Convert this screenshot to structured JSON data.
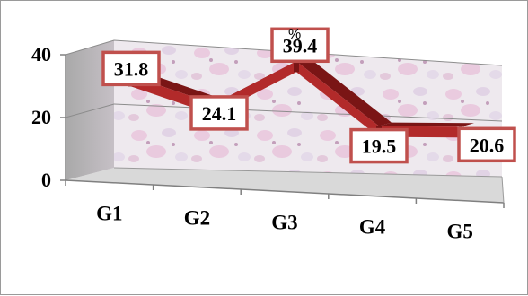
{
  "chart_data": {
    "type": "line",
    "title": "",
    "unit_label": "%",
    "categories": [
      "G1",
      "G2",
      "G3",
      "G4",
      "G5"
    ],
    "series": [
      {
        "values": [
          31.8,
          24.1,
          39.4,
          19.5,
          20.6
        ],
        "labels": [
          "31.8",
          "24.1",
          "39.4",
          "19.5",
          "20.6"
        ]
      }
    ],
    "y_ticks": [
      "0",
      "20",
      "40"
    ],
    "ylim": [
      0,
      40
    ],
    "grid": true,
    "legend": "none",
    "style": "3d-ribbon",
    "colors": {
      "series": "#b22a2a",
      "series_dark": "#7a1515",
      "label_border": "#c0504d",
      "floor": "#d9d9d9",
      "side_wall": "#a6a6a6",
      "back_wall": "#ece4ee"
    }
  }
}
